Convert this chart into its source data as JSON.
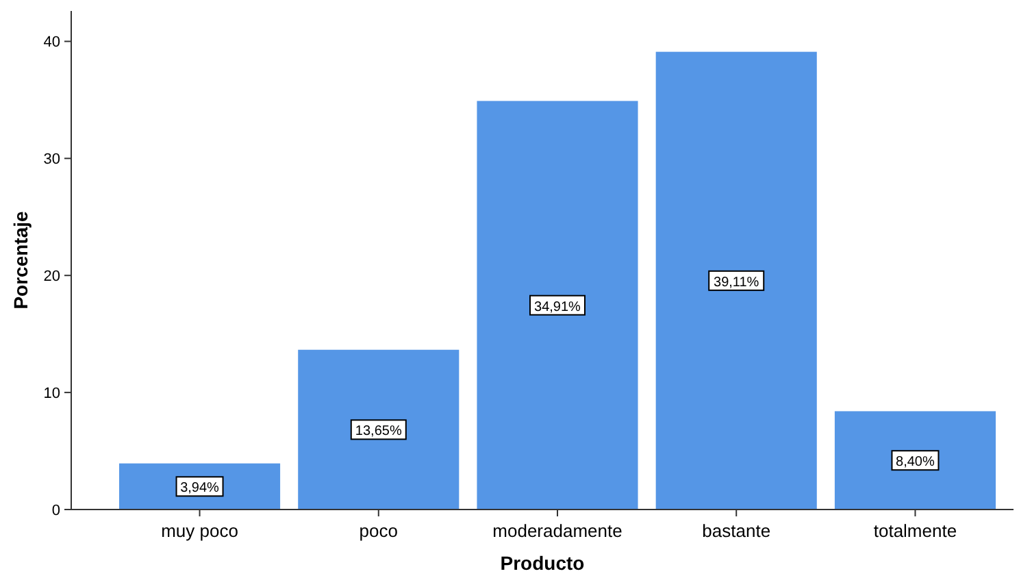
{
  "chart_data": {
    "type": "bar",
    "xlabel": "Producto",
    "ylabel": "Porcentaje",
    "categories": [
      "muy poco",
      "poco",
      "moderadamente",
      "bastante",
      "totalmente"
    ],
    "values": [
      3.94,
      13.65,
      34.91,
      39.11,
      8.4
    ],
    "value_labels": [
      "3,94%",
      "13,65%",
      "34,91%",
      "39,11%",
      "8,40%"
    ],
    "color": "#5596e6",
    "ylim": [
      0,
      42.6
    ],
    "yticks": [
      0,
      10,
      20,
      30,
      40
    ],
    "grid": false
  }
}
